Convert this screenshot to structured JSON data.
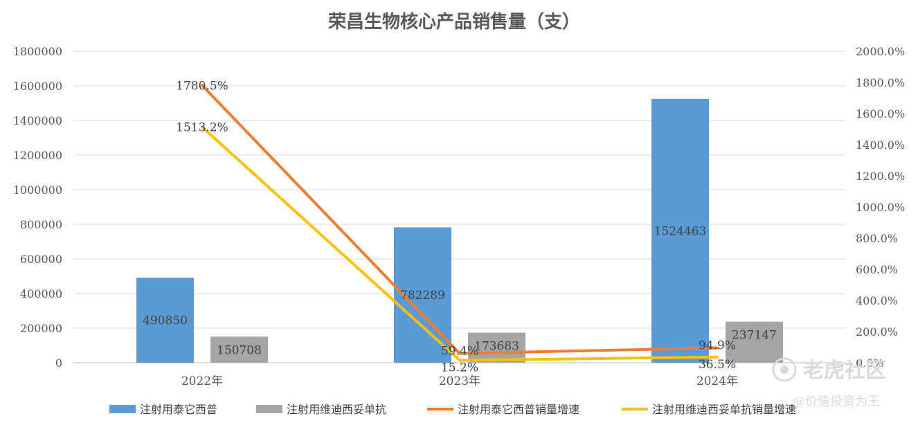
{
  "chart_data": {
    "type": "bar",
    "title": "荣昌生物核心产品销售量（支）",
    "categories": [
      "2022年",
      "2023年",
      "2024年"
    ],
    "left_axis": {
      "min": 0,
      "max": 1800000,
      "step": 200000,
      "tick_labels": [
        "0",
        "200000",
        "400000",
        "600000",
        "800000",
        "1000000",
        "1200000",
        "1400000",
        "1600000",
        "1800000"
      ]
    },
    "right_axis": {
      "min": 0,
      "max": 2000,
      "step": 200,
      "tick_labels": [
        "0.0%",
        "200.0%",
        "400.0%",
        "600.0%",
        "800.0%",
        "1000.0%",
        "1200.0%",
        "1400.0%",
        "1600.0%",
        "1800.0%",
        "2000.0%"
      ]
    },
    "grid": true,
    "legend_position": "bottom",
    "series": [
      {
        "name": "注射用泰它西普",
        "kind": "bar",
        "axis": "left",
        "color": "#5b9bd5",
        "values": [
          490850,
          782289,
          1524463
        ],
        "labels": [
          "490850",
          "782289",
          "1524463"
        ]
      },
      {
        "name": "注射用维迪西妥单抗",
        "kind": "bar",
        "axis": "left",
        "color": "#a5a5a5",
        "values": [
          150708,
          173683,
          237147
        ],
        "labels": [
          "150708",
          "173683",
          "237147"
        ]
      },
      {
        "name": "注射用泰它西普销量增速",
        "kind": "line",
        "axis": "right",
        "color": "#ed7d31",
        "values": [
          1780.5,
          59.4,
          94.9
        ],
        "labels": [
          "1780.5%",
          "59.4%",
          "94.9%"
        ]
      },
      {
        "name": "注射用维迪西妥单抗销量增速",
        "kind": "line",
        "axis": "right",
        "color": "#ffc000",
        "values": [
          1513.2,
          15.2,
          36.5
        ],
        "labels": [
          "1513.2%",
          "15.2%",
          "36.5%"
        ]
      }
    ]
  },
  "watermark": {
    "logo_text": "老虎社区",
    "handle": "@价值投资为王"
  }
}
